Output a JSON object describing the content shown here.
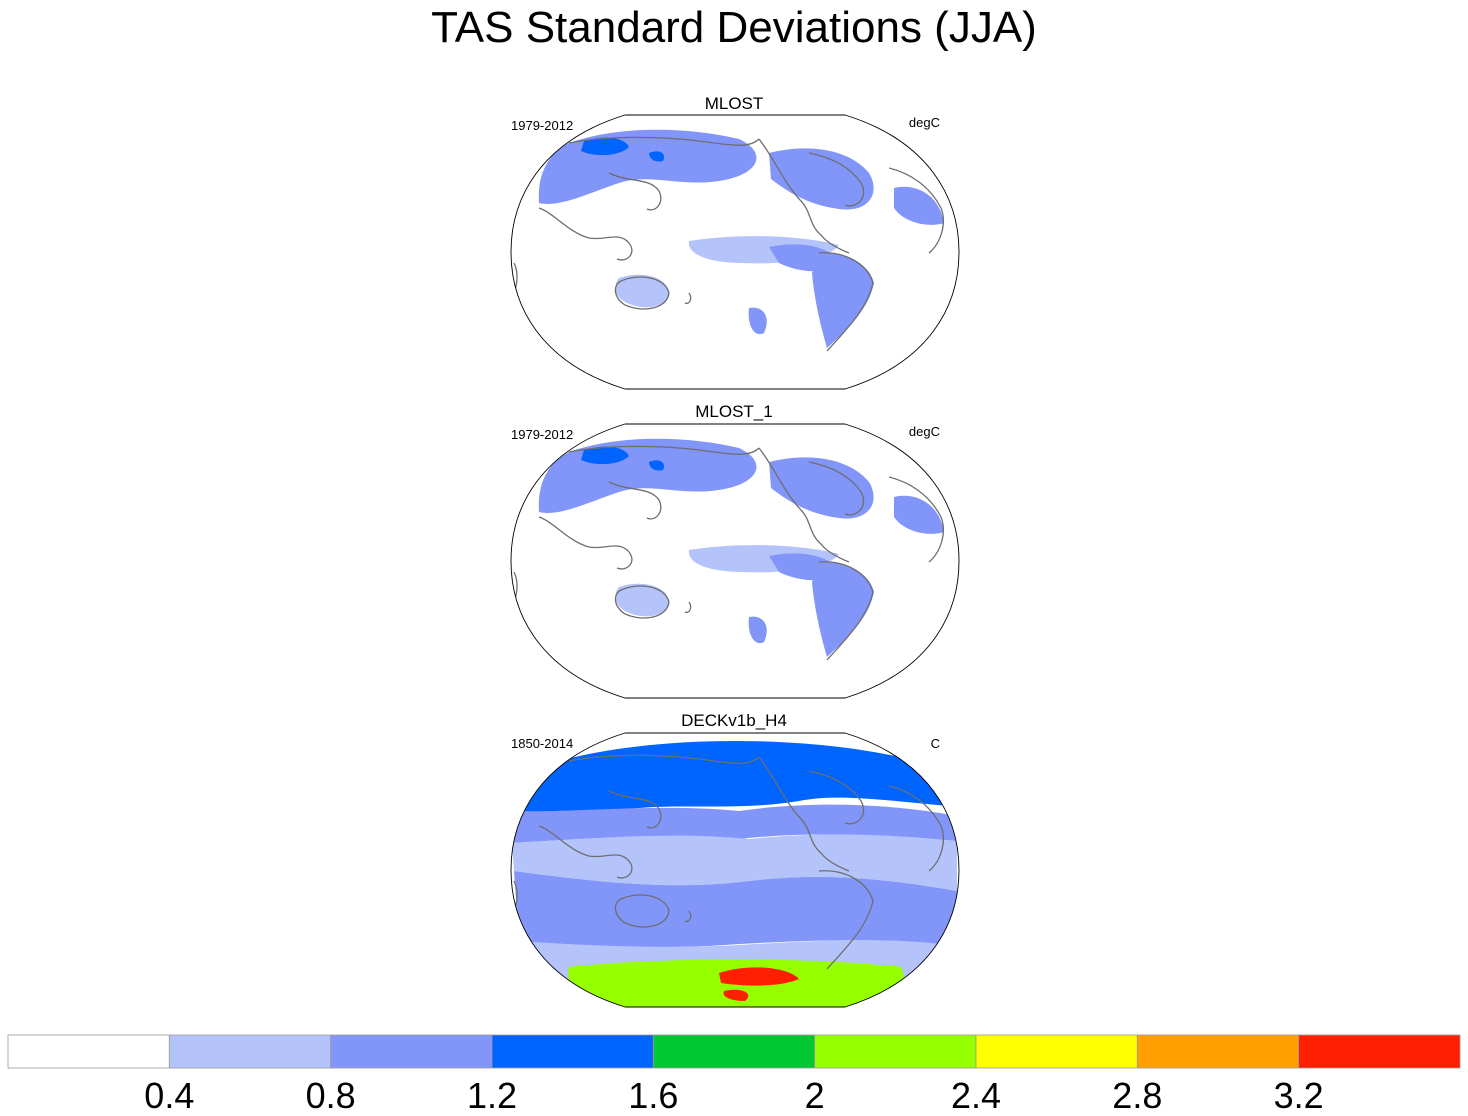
{
  "title": "TAS Standard Deviations (JJA)",
  "chart_data": [
    {
      "type": "heatmap",
      "title": "MLOST",
      "left_label": "1979-2012",
      "right_label": "degC",
      "projection": "Winkel tripel, Pacific-centered",
      "fields": [
        {
          "region": "north-pacific-siberia",
          "value": 0.8
        },
        {
          "region": "northeast-siberia-core",
          "value": 1.2
        },
        {
          "region": "canada-east",
          "value": 0.8
        },
        {
          "region": "tropical-pacific",
          "value": 0.4
        },
        {
          "region": "eastern-tropical-pacific",
          "value": 0.8
        },
        {
          "region": "australia",
          "value": 0.4
        },
        {
          "region": "south-america",
          "value": 0.8
        }
      ]
    },
    {
      "type": "heatmap",
      "title": "MLOST_1",
      "left_label": "1979-2012",
      "right_label": "degC",
      "projection": "Winkel tripel, Pacific-centered",
      "fields": [
        {
          "region": "north-pacific-siberia",
          "value": 0.8
        },
        {
          "region": "northeast-siberia-core",
          "value": 1.2
        },
        {
          "region": "canada-east",
          "value": 0.8
        },
        {
          "region": "tropical-pacific",
          "value": 0.4
        },
        {
          "region": "eastern-tropical-pacific",
          "value": 0.8
        },
        {
          "region": "australia",
          "value": 0.4
        },
        {
          "region": "south-america",
          "value": 0.8
        }
      ]
    },
    {
      "type": "heatmap",
      "title": "DECKv1b_H4",
      "left_label": "1850-2014",
      "right_label": "C",
      "projection": "Winkel tripel, Pacific-centered",
      "fields": [
        {
          "region": "northern-high-latitudes",
          "value": 1.2
        },
        {
          "region": "northern-mid-latitudes",
          "value": 0.8
        },
        {
          "region": "tropics",
          "value": 0.4
        },
        {
          "region": "southern-ocean",
          "value": 0.4
        },
        {
          "region": "antarctic-sea-ice-edge",
          "value": 2.0
        },
        {
          "region": "antarctic-core",
          "value": 3.2
        }
      ]
    }
  ],
  "colorbar": {
    "levels": [
      "0.4",
      "0.8",
      "1.2",
      "1.6",
      "2",
      "2.4",
      "2.8",
      "3.2"
    ],
    "colors": [
      "#ffffff",
      "#b4c3fa",
      "#8296fa",
      "#0064ff",
      "#00c832",
      "#96ff00",
      "#ffff00",
      "#ffa000",
      "#ff1e00"
    ]
  }
}
